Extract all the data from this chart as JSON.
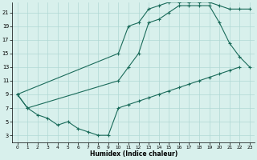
{
  "xlabel": "Humidex (Indice chaleur)",
  "bg_color": "#d8f0ec",
  "grid_color": "#b0d8d4",
  "line_color": "#1a6b5a",
  "xlim": [
    -0.5,
    23.5
  ],
  "ylim": [
    2,
    22.5
  ],
  "xticks": [
    0,
    1,
    2,
    3,
    4,
    5,
    6,
    7,
    8,
    9,
    10,
    11,
    12,
    13,
    14,
    15,
    16,
    17,
    18,
    19,
    20,
    21,
    22,
    23
  ],
  "yticks": [
    3,
    5,
    7,
    9,
    11,
    13,
    15,
    17,
    19,
    21
  ],
  "top_x": [
    0,
    10,
    11,
    12,
    13,
    14,
    15,
    16,
    17,
    18,
    19,
    20,
    21,
    22,
    23
  ],
  "top_y": [
    9,
    15,
    19,
    19.5,
    21.5,
    22,
    22.5,
    22.5,
    22.5,
    22.5,
    22.5,
    22,
    21.5,
    21.5,
    21.5
  ],
  "mid_x": [
    0,
    1,
    10,
    11,
    12,
    13,
    14,
    15,
    16,
    17,
    18,
    19,
    20,
    21,
    22,
    23
  ],
  "mid_y": [
    9,
    7,
    11,
    13,
    15,
    19.5,
    20,
    21,
    22,
    22,
    22,
    22,
    19.5,
    16.5,
    14.5,
    13
  ],
  "bot_x": [
    0,
    1,
    2,
    3,
    4,
    5,
    6,
    7,
    8,
    9,
    10,
    11,
    12,
    13,
    14,
    15,
    16,
    17,
    18,
    19,
    20,
    21,
    22
  ],
  "bot_y": [
    9,
    7,
    6,
    5.5,
    4.5,
    5,
    4,
    3.5,
    3,
    3,
    7,
    7.5,
    8,
    8.5,
    9,
    9.5,
    10,
    10.5,
    11,
    11.5,
    12,
    12.5,
    13
  ]
}
